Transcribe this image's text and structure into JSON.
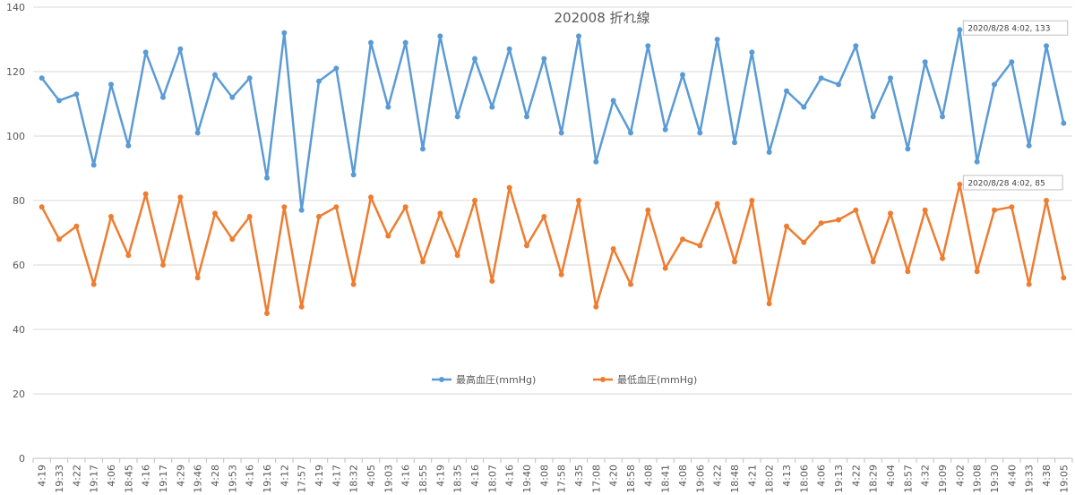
{
  "chart_data": {
    "type": "line",
    "title": "202008  折れ線",
    "ylim": [
      0,
      140
    ],
    "yticks": [
      "0",
      "20",
      "40",
      "60",
      "80",
      "100",
      "120",
      "140"
    ],
    "grid": "horizontal",
    "legend_position": "bottom-center",
    "categories": [
      "4:19",
      "19:33",
      "4:22",
      "19:17",
      "4:06",
      "18:45",
      "4:16",
      "19:17",
      "4:29",
      "19:46",
      "4:28",
      "19:53",
      "4:16",
      "19:16",
      "4:12",
      "17:57",
      "4:19",
      "4:17",
      "18:32",
      "4:05",
      "19:03",
      "4:16",
      "18:55",
      "4:19",
      "18:35",
      "4:16",
      "18:07",
      "4:16",
      "19:40",
      "4:08",
      "17:58",
      "4:35",
      "17:08",
      "4:20",
      "18:58",
      "4:08",
      "18:41",
      "4:08",
      "19:06",
      "4:22",
      "18:48",
      "4:21",
      "18:02",
      "4:13",
      "18:06",
      "4:06",
      "19:13",
      "4:22",
      "18:29",
      "4:04",
      "18:57",
      "4:32",
      "19:09",
      "4:02",
      "19:08",
      "19:30",
      "4:40",
      "19:33",
      "4:38",
      "19:05"
    ],
    "series": [
      {
        "name": "最高血圧(mmHg)",
        "color": "#5B9BD5",
        "values": [
          118,
          111,
          113,
          91,
          116,
          97,
          126,
          112,
          127,
          101,
          119,
          112,
          118,
          87,
          132,
          77,
          117,
          121,
          88,
          129,
          109,
          129,
          96,
          131,
          106,
          124,
          109,
          127,
          106,
          124,
          101,
          131,
          92,
          111,
          101,
          128,
          102,
          119,
          101,
          130,
          98,
          126,
          95,
          114,
          109,
          118,
          116,
          128,
          106,
          118,
          96,
          123,
          106,
          133,
          92,
          116,
          123,
          97,
          128,
          104
        ]
      },
      {
        "name": "最低血圧(mmHg)",
        "color": "#ED7D31",
        "values": [
          78,
          68,
          72,
          54,
          75,
          63,
          82,
          60,
          81,
          56,
          76,
          68,
          75,
          45,
          78,
          47,
          75,
          78,
          54,
          81,
          69,
          78,
          61,
          76,
          63,
          80,
          55,
          84,
          66,
          75,
          57,
          80,
          47,
          65,
          54,
          77,
          59,
          68,
          66,
          79,
          61,
          80,
          48,
          72,
          67,
          73,
          74,
          77,
          61,
          76,
          58,
          77,
          62,
          85,
          58,
          77,
          78,
          54,
          80,
          56
        ]
      }
    ],
    "callouts": [
      {
        "series": 0,
        "index": 53,
        "label": "2020/8/28 4:02, 133"
      },
      {
        "series": 1,
        "index": 53,
        "label": "2020/8/28 4:02, 85"
      }
    ]
  }
}
